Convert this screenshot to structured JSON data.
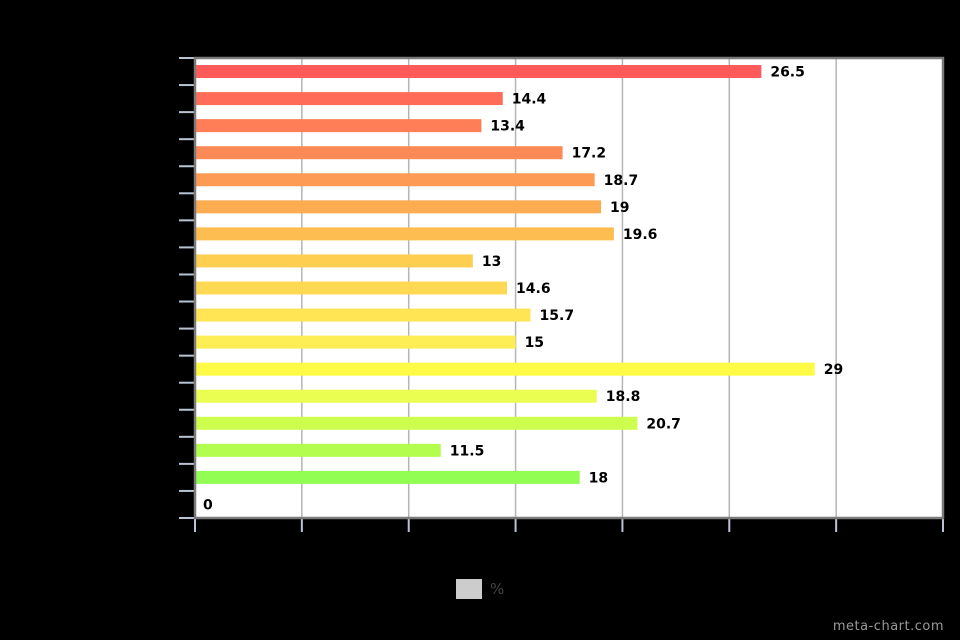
{
  "chart_data": {
    "type": "bar",
    "orientation": "horizontal",
    "categories": [
      "",
      "",
      "",
      "",
      "",
      "",
      "",
      "",
      "",
      "",
      "",
      "",
      "",
      "",
      "",
      "",
      ""
    ],
    "series": [
      {
        "name": "%",
        "values": [
          26.5,
          14.4,
          13.4,
          17.2,
          18.7,
          19,
          19.6,
          13,
          14.6,
          15.7,
          15,
          29,
          18.8,
          20.7,
          11.5,
          18,
          0
        ],
        "labels": [
          "26.5",
          "14.4",
          "13.4",
          "17.2",
          "18.7",
          "19",
          "19.6",
          "13",
          "14.6",
          "15.7",
          "15",
          "29",
          "18.8",
          "20.7",
          "11.5",
          "18",
          "0"
        ],
        "colors": [
          "#ff5a5a",
          "#ff6c58",
          "#ff7d57",
          "#fb8a56",
          "#fd9b54",
          "#fdac52",
          "#fdbd50",
          "#fece50",
          "#ffd953",
          "#ffe454",
          "#feee56",
          "#fdfb45",
          "#e9fe50",
          "#cdfd4d",
          "#b3fd4f",
          "#92fd52",
          "#7afd55"
        ]
      }
    ],
    "xlim": [
      0,
      35
    ],
    "x_grid": true,
    "legend": {
      "position": "bottom-center",
      "color": "#cccccc"
    }
  },
  "watermark": "meta-chart.com"
}
